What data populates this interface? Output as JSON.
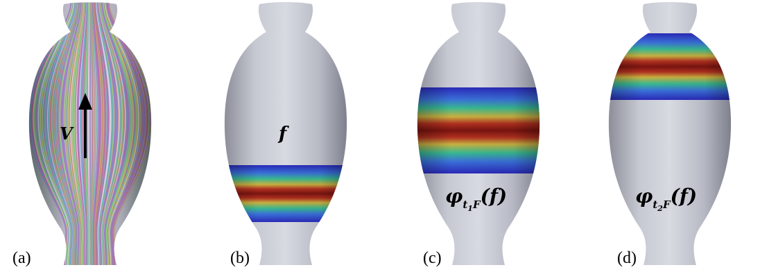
{
  "panels": [
    {
      "caption": "(a)",
      "label": "V"
    },
    {
      "caption": "(b)",
      "label": "f"
    },
    {
      "caption": "(c)",
      "label_main": "φ",
      "label_t": "t",
      "label_1": "1",
      "label_F": "F",
      "label_arg": "(f)"
    },
    {
      "caption": "(d)",
      "label_main": "φ",
      "label_t": "t",
      "label_1": "2",
      "label_F": "F",
      "label_arg": "(f)"
    }
  ],
  "colors": {
    "vase_gray": "#b9bcc7",
    "band_red": "#8a1a12",
    "band_blue": "#3030c0",
    "band_green": "#30b080"
  },
  "icons": [
    "vector-field-arrow",
    "vase-mesh"
  ]
}
